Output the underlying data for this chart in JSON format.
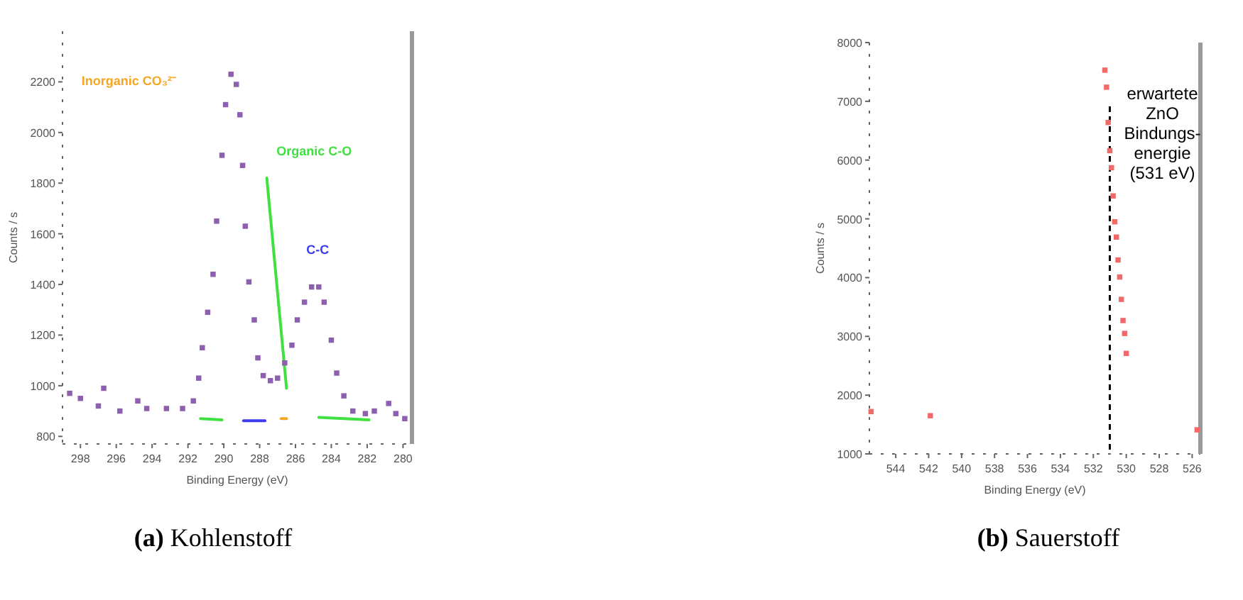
{
  "chart_data": [
    {
      "type": "scatter",
      "xlabel": "Binding Energy (eV)",
      "ylabel": "Counts / s",
      "xlim": [
        299,
        279.5
      ],
      "ylim": [
        770,
        2400
      ],
      "xticks": [
        298,
        296,
        294,
        292,
        290,
        288,
        286,
        284,
        282,
        280
      ],
      "yticks": [
        800,
        1000,
        1200,
        1400,
        1600,
        1800,
        2000,
        2200
      ],
      "series": [
        {
          "marker": "square",
          "color": "#8e5fb0",
          "x": [
            298.6,
            298.0,
            296.7,
            297.0,
            295.8,
            294.8,
            294.3,
            293.2,
            292.3,
            291.7,
            291.4,
            291.2,
            290.9,
            290.6,
            290.4,
            290.1,
            289.9,
            289.6,
            289.3,
            289.1,
            288.95,
            288.8,
            288.6,
            288.3,
            288.1,
            287.8,
            287.4,
            287.0,
            286.6,
            286.2,
            285.9,
            285.5,
            285.1,
            284.7,
            284.4,
            284.0,
            283.7,
            283.3,
            282.8,
            282.1,
            281.6,
            280.8,
            280.4,
            279.9
          ],
          "values": [
            970,
            950,
            990,
            920,
            900,
            940,
            910,
            910,
            910,
            940,
            1030,
            1150,
            1290,
            1440,
            1650,
            1910,
            2110,
            2230,
            2190,
            2070,
            1870,
            1630,
            1410,
            1260,
            1110,
            1040,
            1020,
            1030,
            1090,
            1160,
            1260,
            1330,
            1390,
            1390,
            1330,
            1180,
            1050,
            960,
            900,
            890,
            900,
            930,
            890,
            870
          ]
        },
        {
          "type": "line",
          "color": "#f5a623",
          "x": [
            286.8,
            286.5
          ],
          "values": [
            870,
            870
          ]
        },
        {
          "type": "line",
          "color": "#3fe03f",
          "x": [
            291.3,
            290.1,
            null,
            287.6,
            286.5,
            null,
            284.7,
            281.9
          ],
          "values": [
            870,
            865,
            null,
            1820,
            990,
            null,
            875,
            865
          ]
        },
        {
          "type": "line",
          "color": "#3b3bf0",
          "x": [
            288.9,
            287.7
          ],
          "values": [
            862,
            862
          ]
        }
      ],
      "annotations": [
        "Inorganic CO₃²⁻",
        "Organic C-O",
        "C-C",
        "(a) Kohlenstoff"
      ]
    },
    {
      "type": "scatter",
      "xlabel": "Binding Energy (eV)",
      "ylabel": "Counts / s",
      "xlim": [
        545.6,
        525.5
      ],
      "ylim": [
        1000,
        8000
      ],
      "xticks": [
        544,
        542,
        540,
        538,
        536,
        534,
        532,
        530,
        528,
        526
      ],
      "yticks": [
        1000,
        2000,
        3000,
        4000,
        5000,
        6000,
        7000,
        8000
      ],
      "marker": "square",
      "series": [
        {
          "color": "#f06a6a",
          "x": [
            545.5,
            541.9,
            531.3,
            531.2,
            531.1,
            531.0,
            530.9,
            530.8,
            530.7,
            530.6,
            530.5,
            530.4,
            530.3,
            530.2,
            530.1,
            530.0,
            525.7
          ],
          "values": [
            1720,
            1650,
            7530,
            7240,
            6640,
            6160,
            5870,
            5390,
            4950,
            4690,
            4300,
            4010,
            3630,
            3270,
            3050,
            2710,
            1410
          ]
        }
      ],
      "ref_lines": [
        {
          "axis": "x",
          "value": 531,
          "label": "erwartete\nZnO\nBindungs-\nenergie\n(531 eV)",
          "color": "#000000",
          "line_style": "dashed"
        }
      ],
      "annotations": [
        "(b) Sauerstoff"
      ]
    }
  ]
}
